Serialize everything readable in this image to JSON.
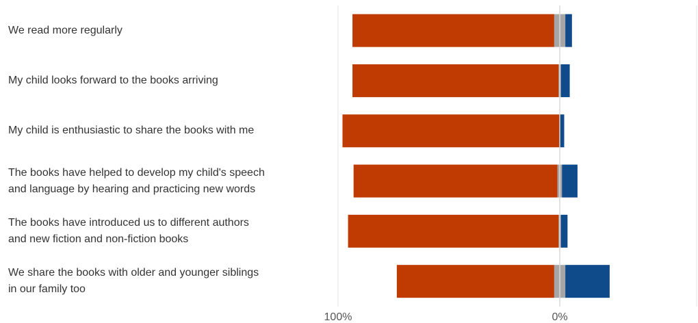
{
  "chart_data": {
    "type": "bar",
    "orientation": "horizontal-diverging",
    "categories": [
      [
        "We read more regularly"
      ],
      [
        "My child looks forward to the books arriving"
      ],
      [
        "My child is enthusiastic to share the books with me"
      ],
      [
        "The books have helped to develop my child's speech",
        "and language by hearing and practicing new words"
      ],
      [
        "The books have introduced us to different authors",
        "and new fiction and non-fiction books"
      ],
      [
        "We share the books with older and younger siblings",
        "in our family too"
      ]
    ],
    "series": [
      {
        "values": [
          91,
          93,
          98,
          92,
          95,
          71
        ],
        "direction": "left",
        "color": "#bf3b02"
      },
      {
        "values": [
          5,
          1,
          0,
          2,
          1,
          5
        ],
        "direction": "center",
        "color": "#a6a6a6"
      },
      {
        "values": [
          3,
          4,
          2,
          7,
          3,
          20
        ],
        "direction": "right",
        "color": "#0f4a8a"
      }
    ],
    "x_ticks": [
      "100%",
      "0%"
    ],
    "xlim": [
      -100,
      50
    ],
    "grid": true,
    "colors": {
      "zero_line": "#d9d9d9",
      "gridline": "#e3e3e3"
    }
  }
}
